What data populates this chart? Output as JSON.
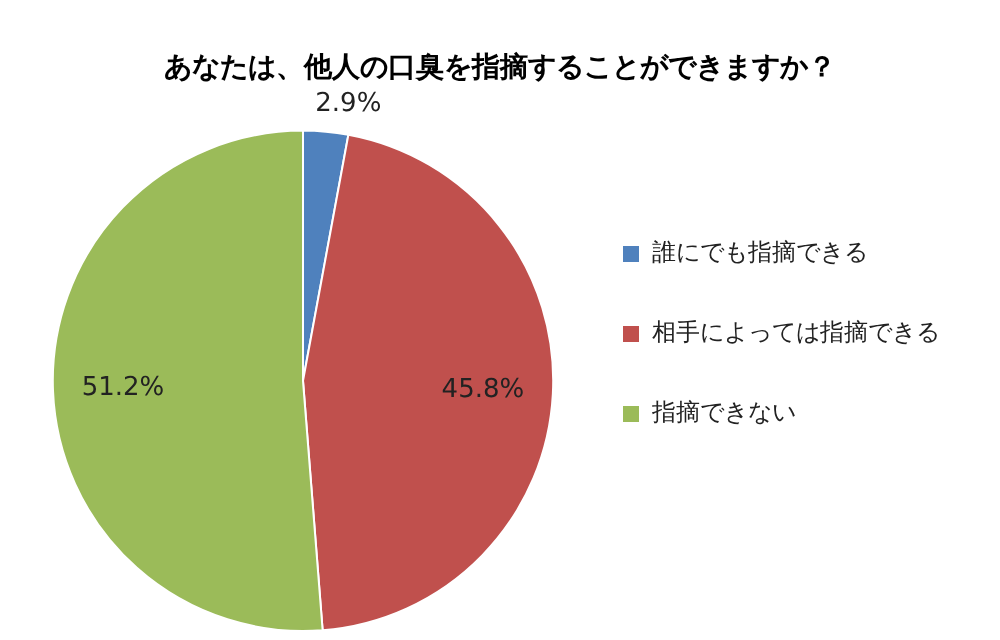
{
  "chart_data": {
    "type": "pie",
    "title": "あなたは、他人の口臭を指摘することができますか？",
    "categories": [
      "誰にでも指摘できる",
      "相手によっては指摘できる",
      "指摘できない"
    ],
    "values": [
      2.9,
      45.8,
      51.2
    ],
    "colors": [
      "#4f81bd",
      "#c0504d",
      "#9bbb59"
    ],
    "value_labels": [
      "2.9%",
      "45.8%",
      "51.2%"
    ],
    "legend": "right"
  }
}
